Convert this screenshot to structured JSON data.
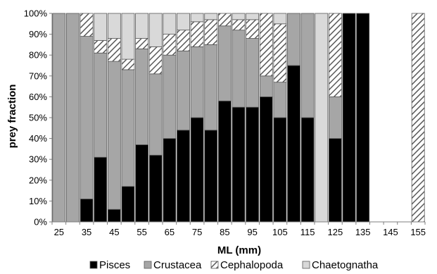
{
  "chart_data": {
    "type": "bar",
    "stacked": true,
    "title": "",
    "xlabel": "ML (mm)",
    "ylabel": "prey fraction",
    "ylim": [
      0,
      100
    ],
    "y_ticks": [
      "0%",
      "10%",
      "20%",
      "30%",
      "40%",
      "50%",
      "60%",
      "70%",
      "80%",
      "90%",
      "100%"
    ],
    "x_tick_labels": [
      "25",
      "35",
      "45",
      "55",
      "65",
      "75",
      "85",
      "95",
      "105",
      "115",
      "125",
      "135",
      "145",
      "155"
    ],
    "categories": [
      "25",
      "30",
      "35",
      "40",
      "45",
      "50",
      "55",
      "60",
      "65",
      "70",
      "75",
      "80",
      "85",
      "90",
      "95",
      "100",
      "105",
      "110",
      "115",
      "120",
      "125",
      "130",
      "135",
      "140",
      "145",
      "150",
      "155"
    ],
    "series": [
      {
        "name": "Pisces",
        "color": "#000000",
        "pattern": "solid",
        "values": [
          0,
          0,
          11,
          31,
          6,
          17,
          37,
          32,
          40,
          44,
          50,
          44,
          58,
          55,
          55,
          60,
          50,
          75,
          50,
          0,
          40,
          100,
          100,
          0,
          0,
          0,
          0
        ]
      },
      {
        "name": "Crustacea",
        "color": "#a6a6a6",
        "pattern": "solid",
        "values": [
          100,
          100,
          78,
          50,
          71,
          56,
          46,
          39,
          40,
          38,
          34,
          41,
          36,
          37,
          33,
          10,
          17,
          25,
          50,
          0,
          20,
          0,
          0,
          0,
          0,
          0,
          0
        ]
      },
      {
        "name": "Cephalopoda",
        "color": "#ffffff",
        "pattern": "hatch",
        "values": [
          0,
          0,
          11,
          6,
          11,
          5,
          5,
          13,
          10,
          10,
          12,
          12,
          6,
          5,
          9,
          30,
          28,
          0,
          0,
          0,
          40,
          0,
          0,
          0,
          0,
          0,
          100
        ]
      },
      {
        "name": "Chaetognatha",
        "color": "#d9d9d9",
        "pattern": "solid",
        "values": [
          0,
          0,
          0,
          13,
          12,
          22,
          12,
          16,
          10,
          8,
          4,
          3,
          0,
          3,
          3,
          0,
          5,
          0,
          0,
          100,
          0,
          0,
          0,
          0,
          0,
          0,
          0
        ]
      }
    ],
    "legend": "bottom",
    "grid": false
  }
}
